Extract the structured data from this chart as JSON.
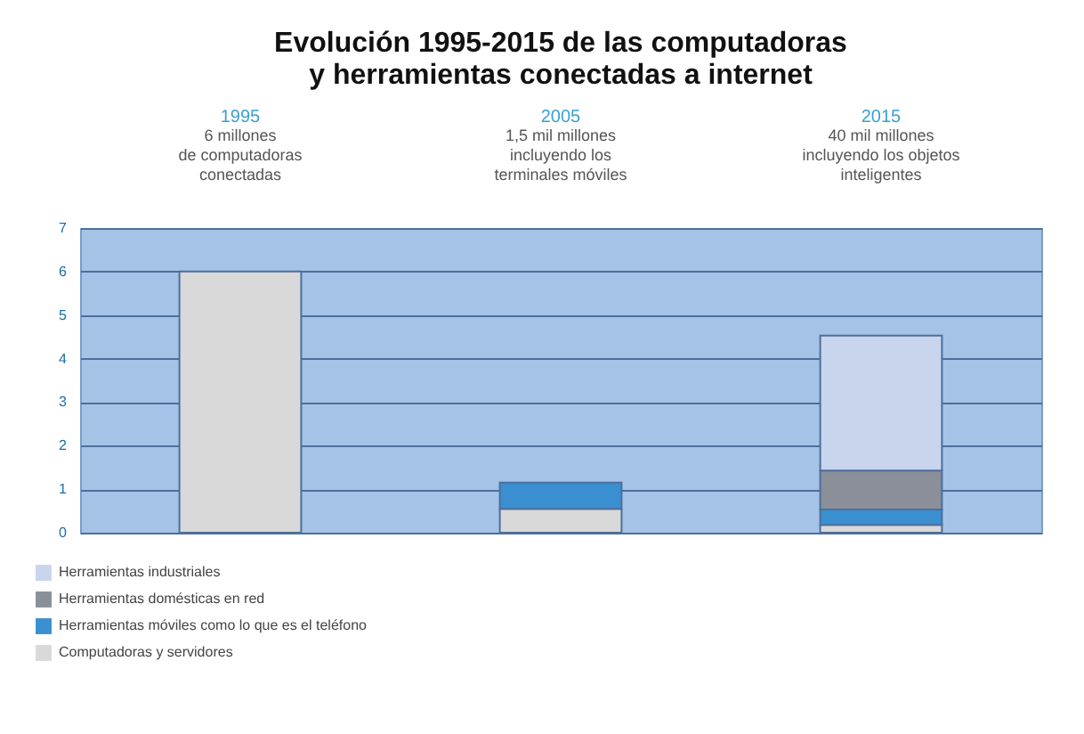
{
  "chart_data": {
    "type": "bar",
    "title": "Evolución 1995-2015 de las computadoras y herramientas conectadas a internet",
    "categories": [
      "1995",
      "2005",
      "2015"
    ],
    "annotations": [
      "6 millones\nde computadoras\nconectadas",
      "1,5 mil millones\nincluyendo los\nterminales móviles",
      "40 mil millones\nincluyendo los objetos\ninteligentes"
    ],
    "stacked": true,
    "series": [
      {
        "name": "Computadoras y servidores",
        "color": "#d9d9d9",
        "values": [
          6,
          0.55,
          0.18
        ]
      },
      {
        "name": "Herramientas móviles como lo que es el teléfono",
        "color": "#3a8fd0",
        "values": [
          null,
          0.6,
          0.35
        ]
      },
      {
        "name": "Herramientas domésticas en red",
        "color": "#8a8f99",
        "values": [
          null,
          null,
          0.9
        ]
      },
      {
        "name": "Herramientas industriales",
        "color": "#c9d5ec",
        "values": [
          null,
          null,
          3.1
        ]
      }
    ],
    "ylim": [
      0,
      7
    ],
    "yticks": [
      0,
      1,
      2,
      3,
      4,
      5,
      6,
      7
    ],
    "grid": "y",
    "legend": "bottom left"
  }
}
